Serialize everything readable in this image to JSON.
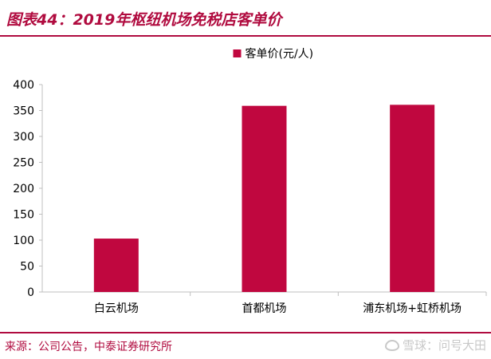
{
  "figure": {
    "title": "图表44：2019年枢纽机场免税店客单价",
    "source": "来源：公司公告，中泰证券研究所",
    "watermark": "雪球：问号大田",
    "watermark_icon": "snowball-icon"
  },
  "colors": {
    "bar": "#c0073f",
    "title": "#b00b3f",
    "axis": "#bfbfbf",
    "text": "#000000"
  },
  "chart_data": {
    "type": "bar",
    "categories": [
      "白云机场",
      "首都机场",
      "浦东机场+虹桥机场"
    ],
    "series": [
      {
        "name": "客单价(元/人)",
        "values": [
          103,
          359,
          361
        ]
      }
    ],
    "yticks": [
      "0",
      "50",
      "100",
      "150",
      "200",
      "250",
      "300",
      "350",
      "400"
    ],
    "ylim": [
      0,
      400
    ],
    "grid": false,
    "legend": "top-center",
    "title": "",
    "xlabel": "",
    "ylabel": ""
  }
}
